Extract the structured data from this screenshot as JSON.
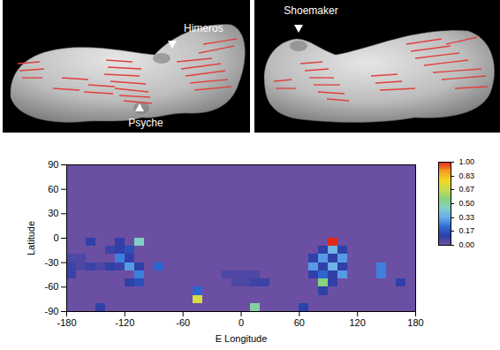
{
  "images": [
    {
      "labels": [
        "Himeros",
        "Psyche"
      ]
    },
    {
      "labels": [
        "Shoemaker"
      ]
    }
  ],
  "chart_data": {
    "type": "heatmap",
    "xlabel": "E Longitude",
    "ylabel": "Latitude",
    "xlim": [
      -180,
      180
    ],
    "ylim": [
      -90,
      90
    ],
    "xticks": [
      -180,
      -120,
      -60,
      0,
      60,
      120,
      180
    ],
    "yticks": [
      -90,
      -60,
      -30,
      0,
      30,
      60,
      90
    ],
    "x": [
      -175,
      -165,
      -155,
      -145,
      -135,
      -125,
      -115,
      -105,
      -95,
      -85,
      -75,
      -65,
      -55,
      -45,
      -35,
      -25,
      -15,
      -5,
      5,
      15,
      25,
      35,
      45,
      55,
      65,
      75,
      85,
      95,
      105,
      115,
      125,
      135,
      145,
      155,
      165,
      175
    ],
    "y": [
      85,
      75,
      65,
      55,
      45,
      35,
      25,
      15,
      5,
      -5,
      -15,
      -25,
      -35,
      -45,
      -55,
      -65,
      -75,
      -85
    ],
    "values": [
      [
        0,
        0,
        0,
        0,
        0,
        0,
        0,
        0,
        0,
        0,
        0,
        0,
        0,
        0,
        0,
        0,
        0,
        0,
        0,
        0,
        0,
        0,
        0,
        0,
        0,
        0,
        0,
        0,
        0,
        0,
        0,
        0,
        0,
        0,
        0,
        0
      ],
      [
        0,
        0,
        0,
        0,
        0,
        0,
        0,
        0,
        0,
        0,
        0,
        0,
        0,
        0,
        0,
        0,
        0,
        0,
        0,
        0,
        0,
        0,
        0,
        0,
        0,
        0,
        0,
        0,
        0,
        0,
        0,
        0,
        0,
        0,
        0,
        0
      ],
      [
        0,
        0,
        0,
        0,
        0,
        0,
        0,
        0,
        0,
        0,
        0,
        0,
        0,
        0,
        0,
        0,
        0,
        0,
        0,
        0,
        0,
        0,
        0,
        0,
        0,
        0,
        0,
        0,
        0,
        0,
        0,
        0,
        0,
        0,
        0,
        0
      ],
      [
        0,
        0,
        0,
        0,
        0,
        0,
        0,
        0,
        0,
        0,
        0,
        0,
        0,
        0,
        0,
        0,
        0,
        0,
        0,
        0,
        0,
        0,
        0,
        0,
        0,
        0,
        0,
        0,
        0,
        0,
        0,
        0,
        0,
        0,
        0,
        0
      ],
      [
        0,
        0,
        0,
        0,
        0,
        0,
        0,
        0,
        0,
        0,
        0,
        0,
        0,
        0,
        0,
        0,
        0,
        0,
        0,
        0,
        0,
        0,
        0,
        0,
        0,
        0,
        0,
        0,
        0,
        0,
        0,
        0,
        0,
        0,
        0,
        0
      ],
      [
        0,
        0,
        0,
        0,
        0,
        0,
        0,
        0,
        0,
        0,
        0,
        0,
        0,
        0,
        0,
        0,
        0,
        0,
        0,
        0,
        0,
        0,
        0,
        0,
        0,
        0,
        0,
        0,
        0,
        0,
        0,
        0,
        0,
        0,
        0,
        0
      ],
      [
        0,
        0,
        0,
        0,
        0,
        0,
        0,
        0,
        0,
        0,
        0,
        0,
        0,
        0,
        0,
        0,
        0,
        0,
        0,
        0,
        0,
        0,
        0,
        0,
        0,
        0,
        0,
        0,
        0,
        0,
        0,
        0,
        0,
        0,
        0,
        0
      ],
      [
        0,
        0,
        0,
        0,
        0,
        0,
        0,
        0,
        0,
        0,
        0,
        0,
        0,
        0,
        0,
        0,
        0,
        0,
        0,
        0,
        0,
        0,
        0,
        0,
        0,
        0,
        0,
        0,
        0,
        0,
        0,
        0,
        0,
        0,
        0,
        0
      ],
      [
        0,
        0,
        0,
        0,
        0,
        0,
        0,
        0,
        0,
        0,
        0,
        0,
        0,
        0,
        0,
        0,
        0,
        0,
        0,
        0,
        0,
        0,
        0,
        0,
        0,
        0,
        0,
        0,
        0,
        0,
        0,
        0,
        0,
        0,
        0,
        0
      ],
      [
        0,
        0,
        0.1,
        0,
        0,
        0.1,
        0,
        0.45,
        0,
        0,
        0,
        0,
        0,
        0,
        0,
        0,
        0,
        0,
        0,
        0,
        0,
        0,
        0,
        0,
        0,
        0,
        0,
        1,
        0,
        0,
        0,
        0,
        0,
        0,
        0,
        0
      ],
      [
        0,
        0,
        0,
        0,
        0.08,
        0.1,
        0.15,
        0,
        0,
        0,
        0,
        0,
        0,
        0,
        0,
        0,
        0,
        0,
        0,
        0,
        0,
        0,
        0,
        0,
        0,
        0,
        0.1,
        0.35,
        0.1,
        0,
        0,
        0,
        0,
        0,
        0,
        0
      ],
      [
        0.05,
        0.05,
        0,
        0,
        0,
        0.25,
        0.1,
        0,
        0,
        0,
        0,
        0,
        0,
        0,
        0,
        0,
        0,
        0,
        0,
        0,
        0,
        0,
        0,
        0,
        0,
        0.1,
        0.3,
        0.1,
        0.3,
        0,
        0,
        0,
        0,
        0,
        0,
        0
      ],
      [
        0.08,
        0.05,
        0.08,
        0.05,
        0.1,
        0.08,
        0.3,
        0.1,
        0,
        0.2,
        0,
        0,
        0,
        0,
        0,
        0,
        0,
        0,
        0,
        0,
        0,
        0,
        0,
        0,
        0,
        0.3,
        0.1,
        0.35,
        0.1,
        0,
        0,
        0,
        0.25,
        0,
        0,
        0
      ],
      [
        0.08,
        0,
        0,
        0,
        0,
        0,
        0,
        0.25,
        0,
        0,
        0,
        0,
        0,
        0,
        0,
        0,
        0.05,
        0.05,
        0.05,
        0.05,
        0,
        0,
        0,
        0,
        0,
        0.1,
        0.2,
        0.1,
        0.3,
        0,
        0,
        0,
        0.25,
        0,
        0,
        0
      ],
      [
        0,
        0,
        0,
        0,
        0,
        0,
        0.1,
        0.15,
        0,
        0,
        0,
        0,
        0,
        0,
        0,
        0,
        0,
        0.05,
        0.05,
        0.08,
        0.08,
        0,
        0,
        0,
        0,
        0,
        0.55,
        0.1,
        0,
        0,
        0,
        0,
        0,
        0,
        0.1,
        0
      ],
      [
        0,
        0,
        0,
        0,
        0,
        0,
        0,
        0,
        0,
        0,
        0,
        0,
        0,
        0.2,
        0,
        0,
        0,
        0,
        0,
        0,
        0,
        0,
        0,
        0,
        0,
        0,
        0.1,
        0,
        0,
        0,
        0,
        0,
        0,
        0,
        0,
        0
      ],
      [
        0,
        0,
        0,
        0,
        0,
        0,
        0,
        0,
        0,
        0,
        0,
        0,
        0,
        0.7,
        0,
        0,
        0,
        0,
        0,
        0,
        0,
        0,
        0,
        0,
        0,
        0,
        0,
        0,
        0,
        0,
        0,
        0,
        0,
        0,
        0,
        0
      ],
      [
        0,
        0,
        0,
        0.1,
        0,
        0,
        0,
        0,
        0,
        0,
        0,
        0,
        0,
        0,
        0,
        0,
        0,
        0,
        0,
        0.5,
        0,
        0,
        0,
        0,
        0.12,
        0,
        0,
        0,
        0,
        0,
        0,
        0,
        0,
        0,
        0,
        0
      ]
    ],
    "colorbar": {
      "range": [
        0,
        1
      ],
      "ticks": [
        {
          "value": 0,
          "label": "0.00"
        },
        0.17,
        0.33,
        {
          "value": 0.5,
          "label": "0.50"
        },
        0.67,
        0.83,
        {
          "value": 1,
          "label": "1.00"
        }
      ]
    }
  }
}
